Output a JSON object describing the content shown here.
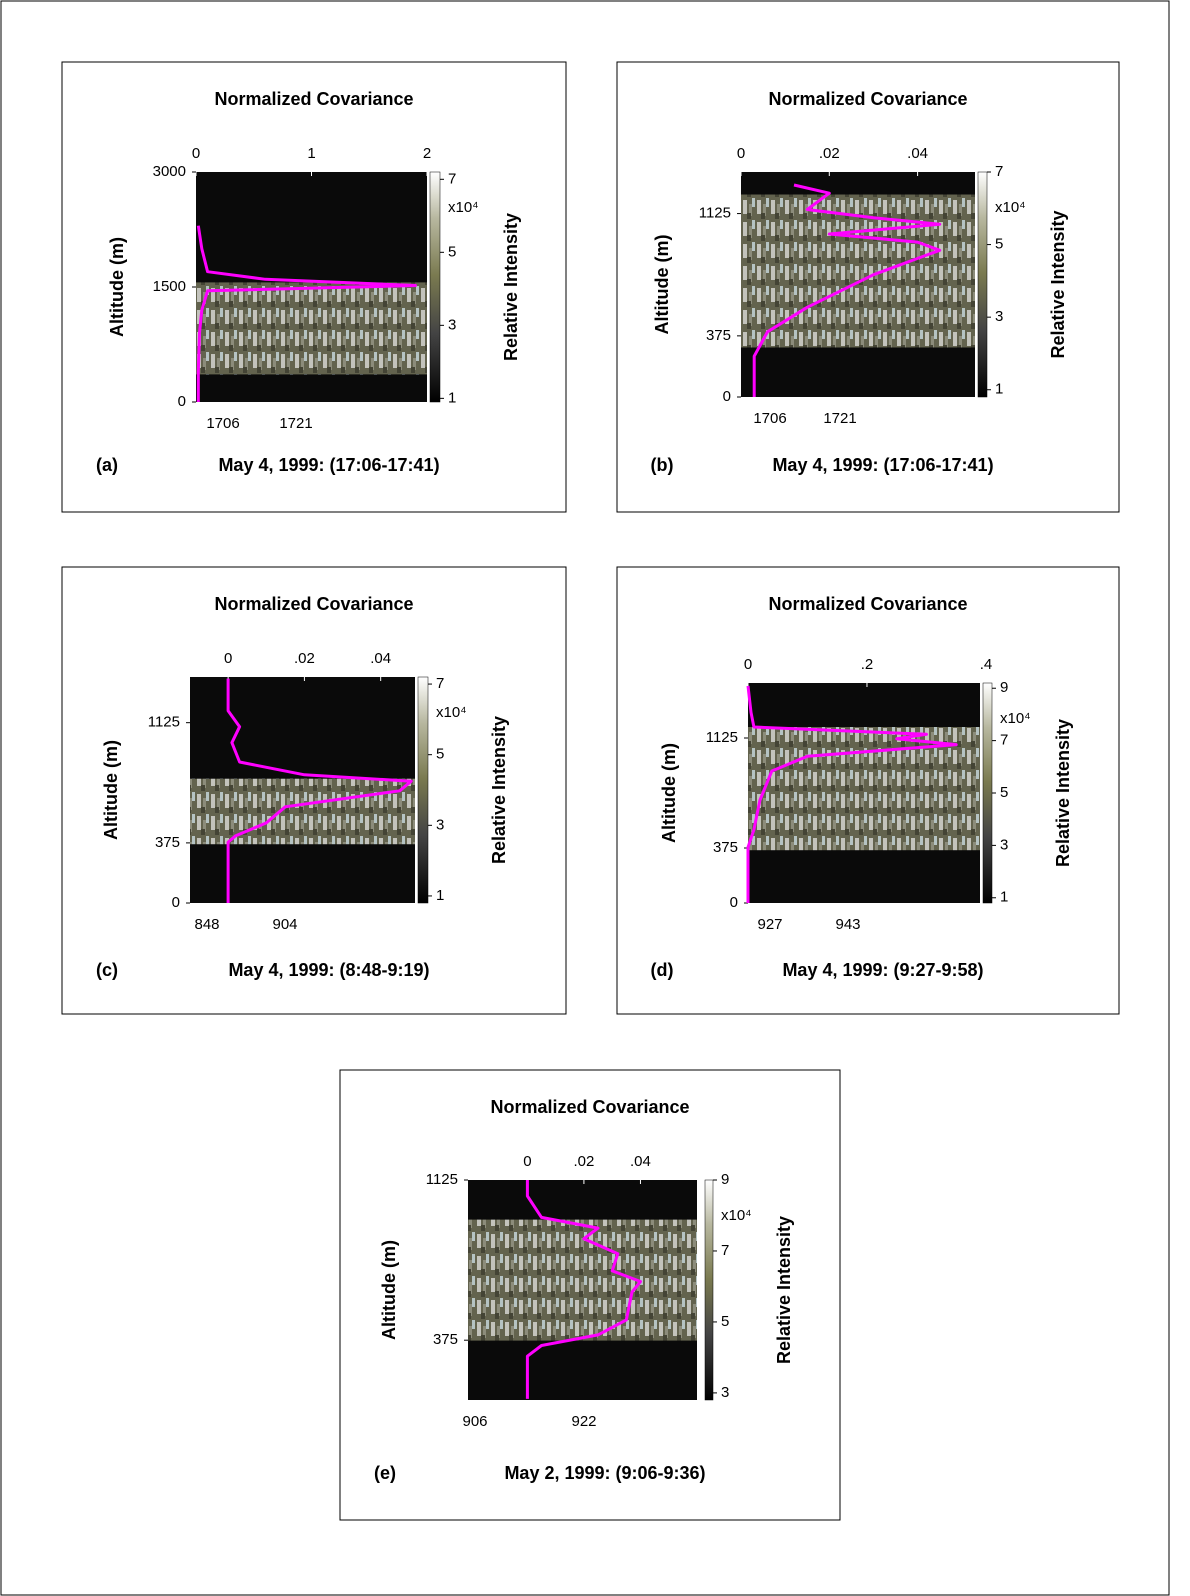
{
  "chart_data": [
    {
      "type": "line",
      "title": "Normalized Covariance",
      "xlim": [
        0,
        2
      ],
      "xticks": [
        0,
        1,
        2
      ],
      "ylim": [
        0,
        3000
      ],
      "yticks": [
        0,
        1500,
        3000
      ],
      "ylabel": "Altitude (m)",
      "time_labels": [
        "1706",
        "1721"
      ],
      "colorbar": {
        "label": "Relative Intensity",
        "multiplier": "x10⁴",
        "lim": [
          0.9,
          7.2
        ],
        "ticks": [
          1,
          3,
          5,
          7
        ]
      },
      "panel_label": "(a)",
      "caption": "May 4, 1999: (17:06-17:41)",
      "profile": {
        "color": "#ff00ff",
        "altitude": [
          0,
          400,
          900,
          1200,
          1450,
          1520,
          1600,
          1700,
          2000,
          2300
        ],
        "covariance": [
          0.02,
          0.02,
          0.03,
          0.05,
          0.1,
          1.9,
          0.6,
          0.1,
          0.05,
          0.02
        ]
      }
    },
    {
      "type": "line",
      "title": "Normalized Covariance",
      "xlim": [
        0,
        0.053
      ],
      "xticks": [
        0,
        {
          "value": 0.02,
          "label": ".02"
        },
        {
          "value": 0.04,
          "label": ".04"
        }
      ],
      "ylim": [
        0,
        1380
      ],
      "yticks": [
        0,
        375,
        1125
      ],
      "ylabel": "Altitude (m)",
      "time_labels": [
        "1706",
        "1721"
      ],
      "colorbar": {
        "label": "Relative Intensity",
        "multiplier": "x10⁴",
        "lim": [
          0.8,
          7.0
        ],
        "ticks": [
          1,
          3,
          5,
          7
        ]
      },
      "panel_label": "(b)",
      "caption": "May 4, 1999: (17:06-17:41)",
      "profile": {
        "color": "#ff00ff",
        "altitude": [
          0,
          250,
          400,
          550,
          750,
          850,
          900,
          950,
          1000,
          1060,
          1100,
          1150,
          1250,
          1300
        ],
        "covariance": [
          0.003,
          0.003,
          0.006,
          0.015,
          0.03,
          0.04,
          0.045,
          0.04,
          0.02,
          0.045,
          0.03,
          0.015,
          0.02,
          0.012
        ]
      }
    },
    {
      "type": "line",
      "title": "Normalized Covariance",
      "xlim": [
        -0.01,
        0.049
      ],
      "xticks": [
        0,
        {
          "value": 0.02,
          "label": ".02"
        },
        {
          "value": 0.04,
          "label": ".04"
        }
      ],
      "ylim": [
        0,
        1410
      ],
      "yticks": [
        0,
        375,
        1125
      ],
      "ylabel": "Altitude (m)",
      "time_labels": [
        "848",
        "904"
      ],
      "colorbar": {
        "label": "Relative Intensity",
        "multiplier": "x10⁴",
        "lim": [
          0.8,
          7.2
        ],
        "ticks": [
          1,
          3,
          5,
          7
        ]
      },
      "panel_label": "(c)",
      "caption": "May 4, 1999: (8:48-9:19)",
      "profile": {
        "color": "#ff00ff",
        "altitude": [
          0,
          380,
          420,
          500,
          600,
          700,
          760,
          800,
          880,
          1000,
          1100,
          1200,
          1400
        ],
        "covariance": [
          0,
          0,
          0.002,
          0.01,
          0.015,
          0.045,
          0.048,
          0.02,
          0.003,
          0.001,
          0.003,
          0,
          0
        ]
      }
    },
    {
      "type": "line",
      "title": "Normalized Covariance",
      "xlim": [
        0,
        0.39
      ],
      "xticks": [
        0,
        {
          "value": 0.2,
          "label": ".2"
        },
        {
          "value": 0.4,
          "label": ".4"
        }
      ],
      "ylim": [
        0,
        1500
      ],
      "yticks": [
        0,
        375,
        1125
      ],
      "ylabel": "Altitude (m)",
      "time_labels": [
        "927",
        "943"
      ],
      "colorbar": {
        "label": "Relative Intensity",
        "multiplier": "x10⁴",
        "lim": [
          0.8,
          9.2
        ],
        "ticks": [
          1,
          3,
          5,
          7,
          9
        ]
      },
      "panel_label": "(d)",
      "caption": "May 4, 1999: (9:27-9:58)",
      "profile": {
        "color": "#ff00ff",
        "altitude": [
          0,
          380,
          500,
          700,
          900,
          1000,
          1080,
          1120,
          1150,
          1200,
          1300,
          1480
        ],
        "covariance": [
          0,
          0,
          0.01,
          0.02,
          0.04,
          0.1,
          0.35,
          0.25,
          0.3,
          0.01,
          0.005,
          0
        ]
      }
    },
    {
      "type": "line",
      "title": "Normalized Covariance",
      "xlim": [
        -0.021,
        0.06
      ],
      "xticks": [
        0,
        {
          "value": 0.02,
          "label": ".02"
        },
        {
          "value": 0.04,
          "label": ".04"
        }
      ],
      "ylim": [
        95,
        1125
      ],
      "yticks": [
        375,
        1125
      ],
      "ylabel": "Altitude (m)",
      "time_labels": [
        "906",
        "922"
      ],
      "colorbar": {
        "label": "Relative Intensity",
        "multiplier": "x10⁴",
        "lim": [
          2.8,
          9.0
        ],
        "ticks": [
          3,
          5,
          7,
          9
        ]
      },
      "panel_label": "(e)",
      "caption": "May 2, 1999: (9:06-9:36)",
      "profile": {
        "color": "#ff00ff",
        "altitude": [
          100,
          300,
          350,
          400,
          470,
          600,
          650,
          700,
          780,
          850,
          900,
          950,
          1050,
          1125
        ],
        "covariance": [
          0,
          0,
          0.005,
          0.025,
          0.035,
          0.037,
          0.04,
          0.03,
          0.032,
          0.02,
          0.025,
          0.005,
          0,
          0
        ]
      }
    }
  ]
}
